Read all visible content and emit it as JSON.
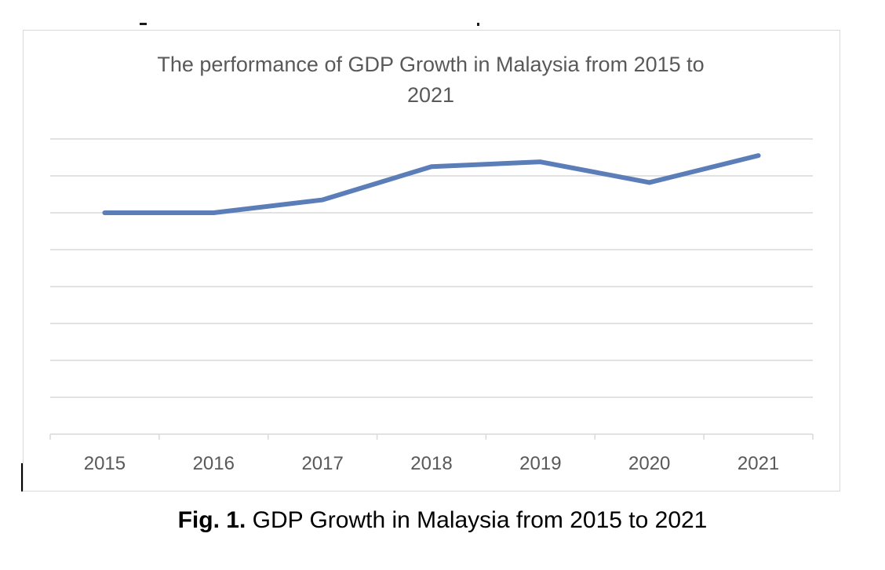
{
  "caption": {
    "prefix": "Fig. 1.",
    "text": "GDP Growth in Malaysia from 2015 to 2021"
  },
  "colors": {
    "line": "#5b7db8",
    "grid": "#d9d9d9",
    "text": "#595959"
  },
  "chart_data": {
    "type": "line",
    "title": "The performance of GDP Growth in Malaysia from 2015 to 2021",
    "title_lines": [
      "The performance of GDP Growth in Malaysia from 2015 to",
      "2021"
    ],
    "categories": [
      "2015",
      "2016",
      "2017",
      "2018",
      "2019",
      "2020",
      "2021"
    ],
    "series": [
      {
        "values": [
          6.0,
          6.0,
          6.35,
          7.25,
          7.38,
          6.82,
          7.55
        ]
      }
    ],
    "ylim": [
      0,
      8
    ],
    "ytick_step": 1,
    "y_tick_labels_shown": false,
    "grid": true,
    "legend": "none"
  }
}
